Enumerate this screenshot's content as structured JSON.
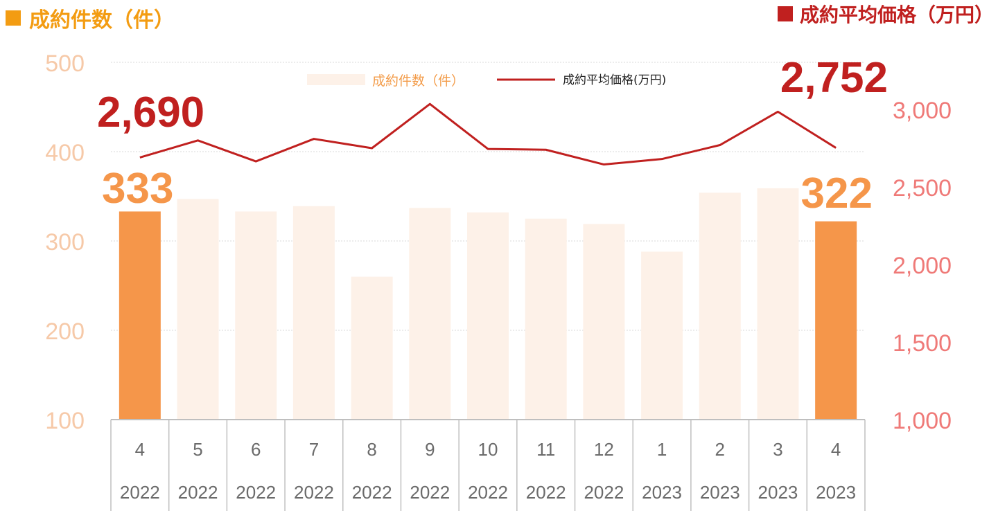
{
  "titles": {
    "left": "成約件数（件）",
    "right": "成約平均価格（万円）"
  },
  "legend": {
    "bars": "成約件数（件）",
    "line": "成約平均価格(万円)"
  },
  "colors": {
    "bar_highlight": "#f5964a",
    "bar_muted": "#fdf1e8",
    "line": "#c0201f",
    "left_axis": "#f6c9a8",
    "right_axis": "#ef7a78",
    "left_title": "#f39c12",
    "right_title": "#c0201f"
  },
  "chart_data": {
    "type": "bar",
    "categories": [
      "4",
      "5",
      "6",
      "7",
      "8",
      "9",
      "10",
      "11",
      "12",
      "1",
      "2",
      "3",
      "4"
    ],
    "years": [
      "2022",
      "2022",
      "2022",
      "2022",
      "2022",
      "2022",
      "2022",
      "2022",
      "2022",
      "2023",
      "2023",
      "2023",
      "2023"
    ],
    "series": [
      {
        "name": "成約件数（件）",
        "type": "bar",
        "axis": "left",
        "values": [
          333,
          347,
          333,
          339,
          260,
          337,
          332,
          325,
          319,
          288,
          354,
          359,
          322
        ],
        "highlight": [
          true,
          false,
          false,
          false,
          false,
          false,
          false,
          false,
          false,
          false,
          false,
          false,
          true
        ]
      },
      {
        "name": "成約平均価格(万円)",
        "type": "line",
        "axis": "right",
        "values": [
          2690,
          2800,
          2665,
          2810,
          2750,
          3035,
          2745,
          2740,
          2645,
          2680,
          2770,
          2985,
          2752
        ]
      }
    ],
    "left_axis": {
      "ylim": [
        100,
        500
      ],
      "ticks": [
        "100",
        "200",
        "300",
        "400",
        "500"
      ]
    },
    "right_axis": {
      "ylim": [
        1000,
        3000
      ],
      "ticks": [
        "1,000",
        "1,500",
        "2,000",
        "2,500",
        "3,000"
      ]
    },
    "annotations": {
      "bar_first": "333",
      "bar_last": "322",
      "line_first": "2,690",
      "line_last": "2,752"
    },
    "grid": true,
    "legend_position": "top-center"
  }
}
